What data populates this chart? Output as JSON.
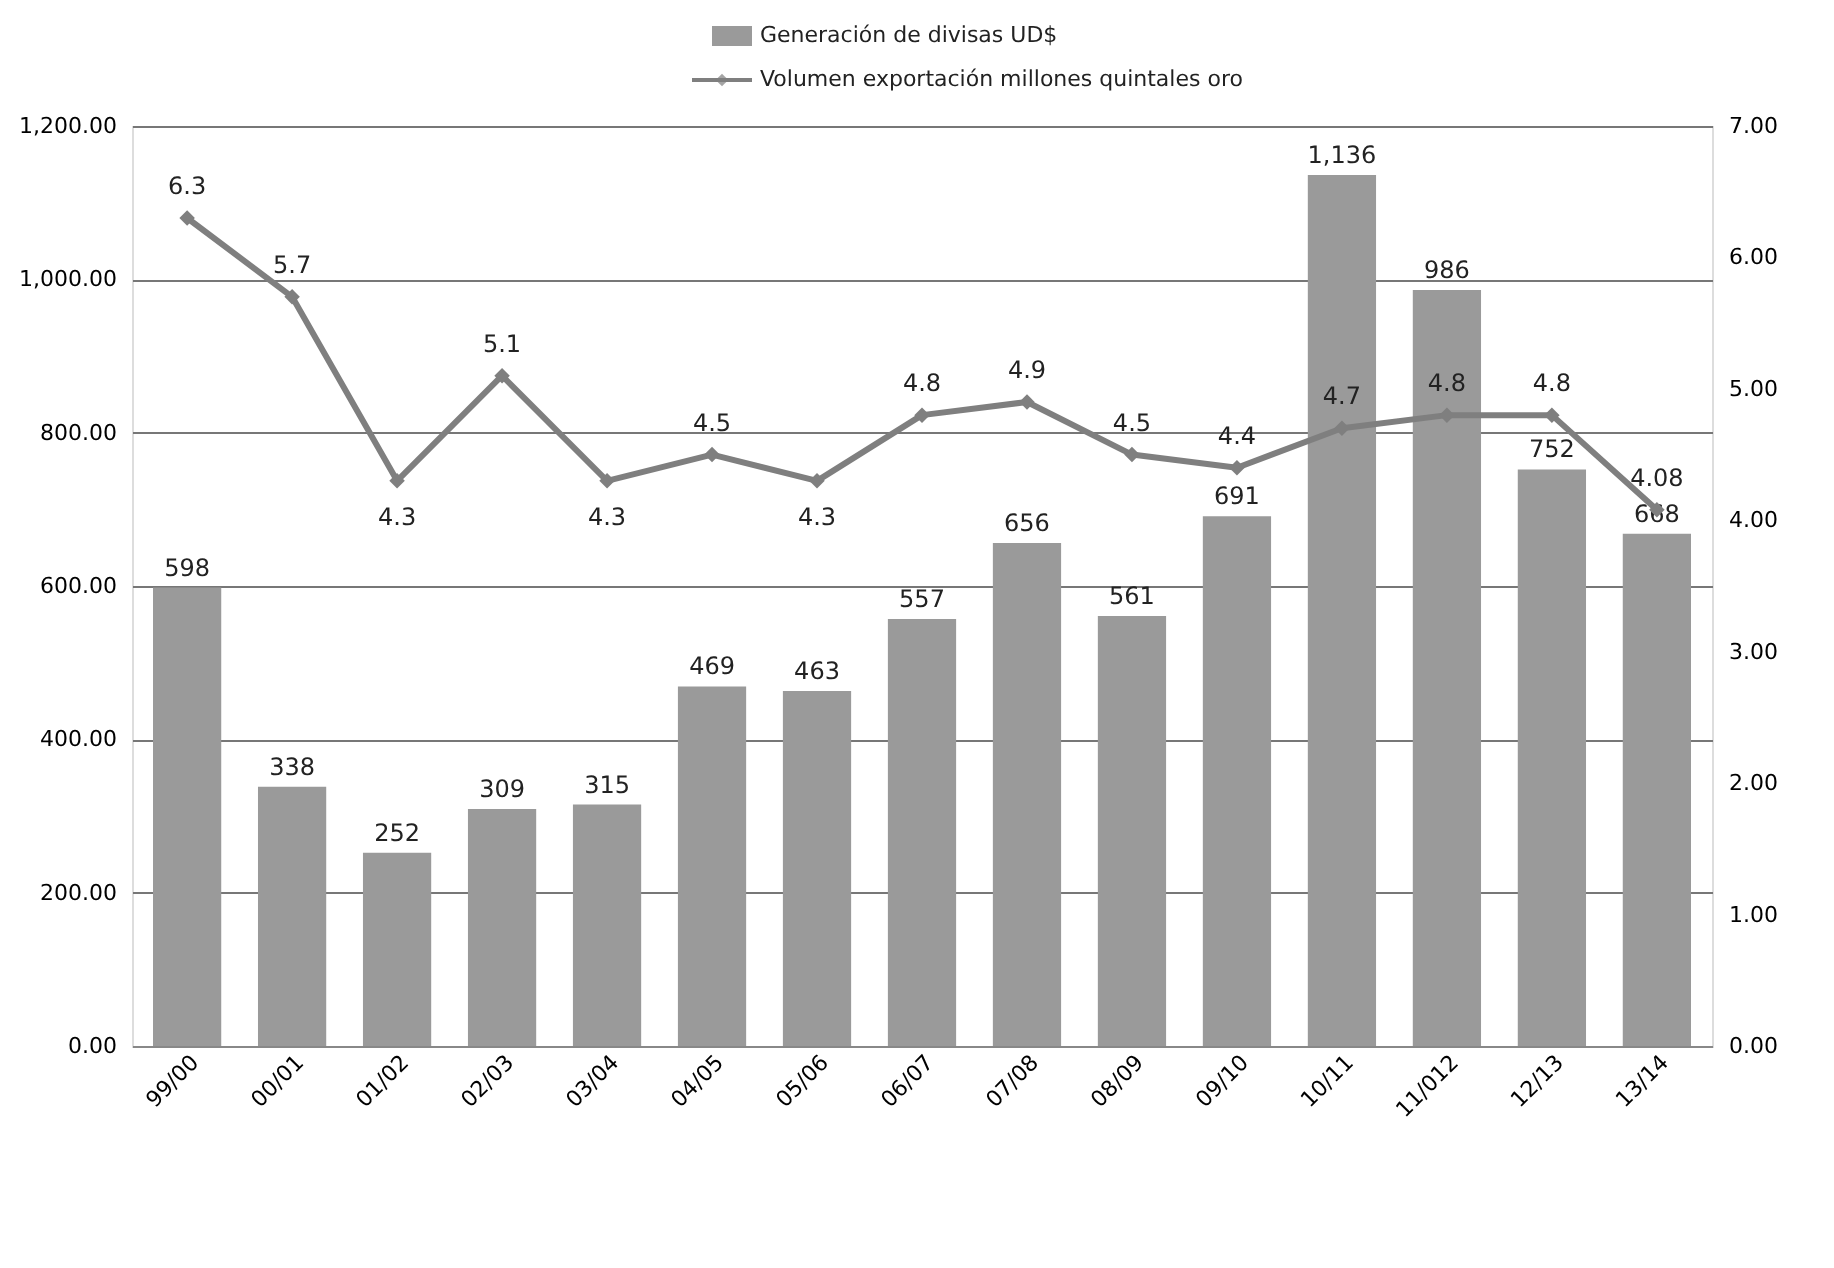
{
  "chart_data": {
    "type": "bar",
    "categories": [
      "99/00",
      "00/01",
      "01/02",
      "02/03",
      "03/04",
      "04/05",
      "05/06",
      "06/07",
      "07/08",
      "08/09",
      "09/10",
      "10/11",
      "11/012",
      "12/13",
      "13/14"
    ],
    "series": [
      {
        "name": "Generación de divisas UD$",
        "type": "bar",
        "color": "#9a9a9a",
        "values": [
          598,
          338,
          252,
          309,
          315,
          469,
          463,
          557,
          656,
          561,
          691,
          1136,
          986,
          752,
          668
        ],
        "value_labels": [
          "598",
          "338",
          "252",
          "309",
          "315",
          "469",
          "463",
          "557",
          "656",
          "561",
          "691",
          "1,136",
          "986",
          "752",
          "668"
        ]
      },
      {
        "name": "Volumen exportación millones quintales oro",
        "type": "line",
        "axis": "y2",
        "color": "#7f7f7f",
        "marker": "diamond",
        "values": [
          6.3,
          5.7,
          4.3,
          5.1,
          4.3,
          4.5,
          4.3,
          4.8,
          4.9,
          4.5,
          4.4,
          4.7,
          4.8,
          4.8,
          4.08
        ],
        "value_labels": [
          "6.3",
          "5.7",
          "4.3",
          "5.1",
          "4.3",
          "4.5",
          "4.3",
          "4.8",
          "4.9",
          "4.5",
          "4.4",
          "4.7",
          "4.8",
          "4.8",
          "4.08"
        ]
      }
    ],
    "ylim": [
      0,
      1200
    ],
    "yticks": [
      {
        "value": 0,
        "label": "0.00"
      },
      {
        "value": 200,
        "label": "200.00"
      },
      {
        "value": 400,
        "label": "400.00"
      },
      {
        "value": 600,
        "label": "600.00"
      },
      {
        "value": 800,
        "label": "800.00"
      },
      {
        "value": 1000,
        "label": "1,000.00"
      },
      {
        "value": 1200,
        "label": "1,200.00"
      }
    ],
    "y2lim": [
      0,
      7
    ],
    "y2ticks": [
      {
        "value": 0,
        "label": "0.00"
      },
      {
        "value": 1,
        "label": "1.00"
      },
      {
        "value": 2,
        "label": "2.00"
      },
      {
        "value": 3,
        "label": "3.00"
      },
      {
        "value": 4,
        "label": "4.00"
      },
      {
        "value": 5,
        "label": "5.00"
      },
      {
        "value": 6,
        "label": "6.00"
      },
      {
        "value": 7,
        "label": "7.00"
      }
    ],
    "grid": "y",
    "legend": "top"
  }
}
